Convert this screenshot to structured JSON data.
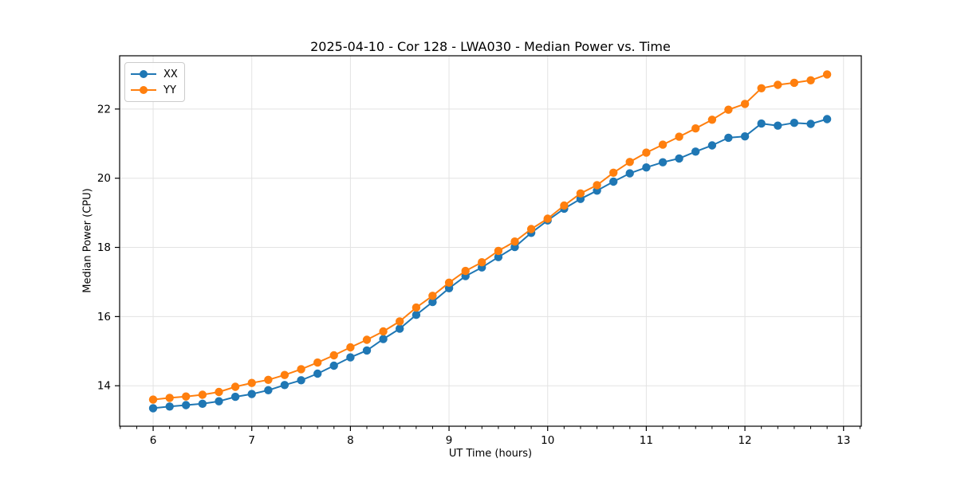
{
  "figure": {
    "background": "#ffffff",
    "spine_color": "#000000",
    "grid_color": "#e3e3e3"
  },
  "chart_data": {
    "type": "line",
    "title": "2025-04-10 - Cor 128 - LWA030 - Median Power vs. Time",
    "xlabel": "UT Time (hours)",
    "ylabel": "Median Power (CPU)",
    "xlim": [
      5.66,
      13.18
    ],
    "ylim": [
      12.83,
      23.54
    ],
    "x_ticks": [
      6,
      7,
      8,
      9,
      10,
      11,
      12,
      13
    ],
    "y_ticks": [
      14,
      16,
      18,
      20,
      22
    ],
    "x_minor_tick_step": 0.166667,
    "grid": true,
    "legend_position": "upper-left",
    "x": [
      6.0,
      6.167,
      6.333,
      6.5,
      6.667,
      6.833,
      7.0,
      7.167,
      7.333,
      7.5,
      7.667,
      7.833,
      8.0,
      8.167,
      8.333,
      8.5,
      8.667,
      8.833,
      9.0,
      9.167,
      9.333,
      9.5,
      9.667,
      9.833,
      10.0,
      10.167,
      10.333,
      10.5,
      10.667,
      10.833,
      11.0,
      11.167,
      11.333,
      11.5,
      11.667,
      11.833,
      12.0,
      12.167,
      12.333,
      12.5,
      12.667,
      12.833
    ],
    "series": [
      {
        "name": "XX",
        "color": "#1f77b4",
        "values": [
          13.35,
          13.4,
          13.44,
          13.48,
          13.55,
          13.68,
          13.76,
          13.87,
          14.02,
          14.16,
          14.35,
          14.58,
          14.82,
          15.02,
          15.35,
          15.65,
          16.05,
          16.42,
          16.82,
          17.17,
          17.42,
          17.72,
          18.01,
          18.42,
          18.78,
          19.12,
          19.4,
          19.64,
          19.9,
          20.14,
          20.31,
          20.46,
          20.57,
          20.77,
          20.95,
          21.17,
          21.21,
          21.58,
          21.52,
          21.6,
          21.57,
          21.71
        ]
      },
      {
        "name": "YY",
        "color": "#ff7f0e",
        "values": [
          13.6,
          13.65,
          13.69,
          13.74,
          13.82,
          13.97,
          14.08,
          14.17,
          14.31,
          14.48,
          14.67,
          14.88,
          15.11,
          15.33,
          15.57,
          15.86,
          16.26,
          16.6,
          16.98,
          17.32,
          17.57,
          17.9,
          18.17,
          18.53,
          18.83,
          19.21,
          19.56,
          19.8,
          20.16,
          20.47,
          20.74,
          20.97,
          21.2,
          21.44,
          21.69,
          21.98,
          22.15,
          22.6,
          22.7,
          22.76,
          22.83,
          23.0
        ]
      }
    ]
  }
}
